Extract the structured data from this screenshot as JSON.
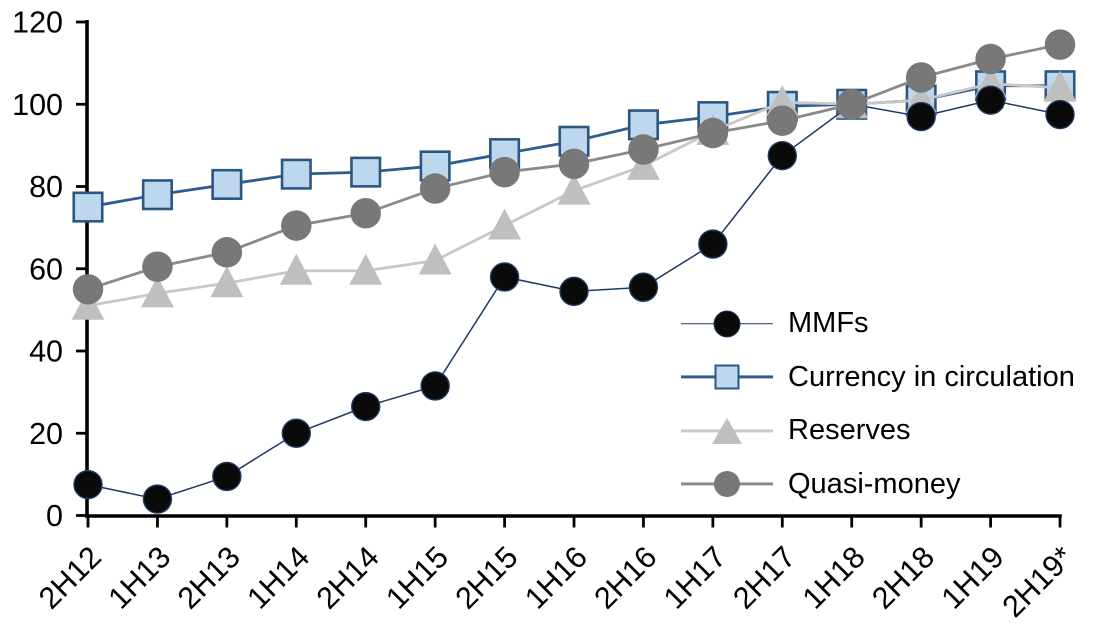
{
  "chart_data": {
    "type": "line",
    "title": "",
    "xlabel": "",
    "ylabel": "",
    "categories": [
      "2H12",
      "1H13",
      "2H13",
      "1H14",
      "2H14",
      "1H15",
      "2H15",
      "1H16",
      "2H16",
      "1H17",
      "2H17",
      "1H18",
      "2H18",
      "1H19",
      "2H19*"
    ],
    "series": [
      {
        "name": "MMFs",
        "marker": "circle",
        "marker_size": 28,
        "fill": "#0a0a0a",
        "edge": "#1f3864",
        "line_color": "#1f3864",
        "line_width": 1.5,
        "values": [
          7.5,
          4,
          9.5,
          20,
          26.5,
          31.5,
          58,
          54.5,
          55.5,
          66,
          87.5,
          100,
          97,
          101,
          97.5
        ]
      },
      {
        "name": "Currency in circulation",
        "marker": "square",
        "marker_size": 28.5,
        "fill": "#bdd7ee",
        "edge": "#2b5780",
        "line_color": "#2e5e8f",
        "line_width": 2.8,
        "values": [
          75,
          78,
          80.5,
          83,
          83.5,
          85,
          88,
          91,
          95,
          97,
          99.5,
          100,
          101,
          104.5,
          104.5
        ]
      },
      {
        "name": "Reserves",
        "marker": "triangle",
        "marker_size": 31,
        "fill": "#bfbfbf",
        "edge": "none",
        "line_color": "#c8c8c8",
        "line_width": 2.8,
        "values": [
          51,
          54,
          56.5,
          59.5,
          59.5,
          62,
          70.5,
          79,
          85,
          93.5,
          100.5,
          100,
          101,
          105,
          104
        ]
      },
      {
        "name": "Quasi-money",
        "marker": "circle",
        "marker_size": 30.5,
        "fill": "#787878",
        "edge": "none",
        "line_color": "#8a8a8a",
        "line_width": 2.8,
        "values": [
          55,
          60.5,
          64,
          70.5,
          73.5,
          79.5,
          83.5,
          85.5,
          89,
          93,
          96,
          100,
          106.5,
          111,
          114.5
        ]
      }
    ],
    "ylim": [
      0,
      120
    ],
    "yticks": [
      0,
      20,
      40,
      60,
      80,
      100,
      120
    ],
    "grid": false,
    "legend_position": "inside-middle-right",
    "z_order": [
      1,
      2,
      0,
      3
    ],
    "axis_color": "#000000"
  }
}
